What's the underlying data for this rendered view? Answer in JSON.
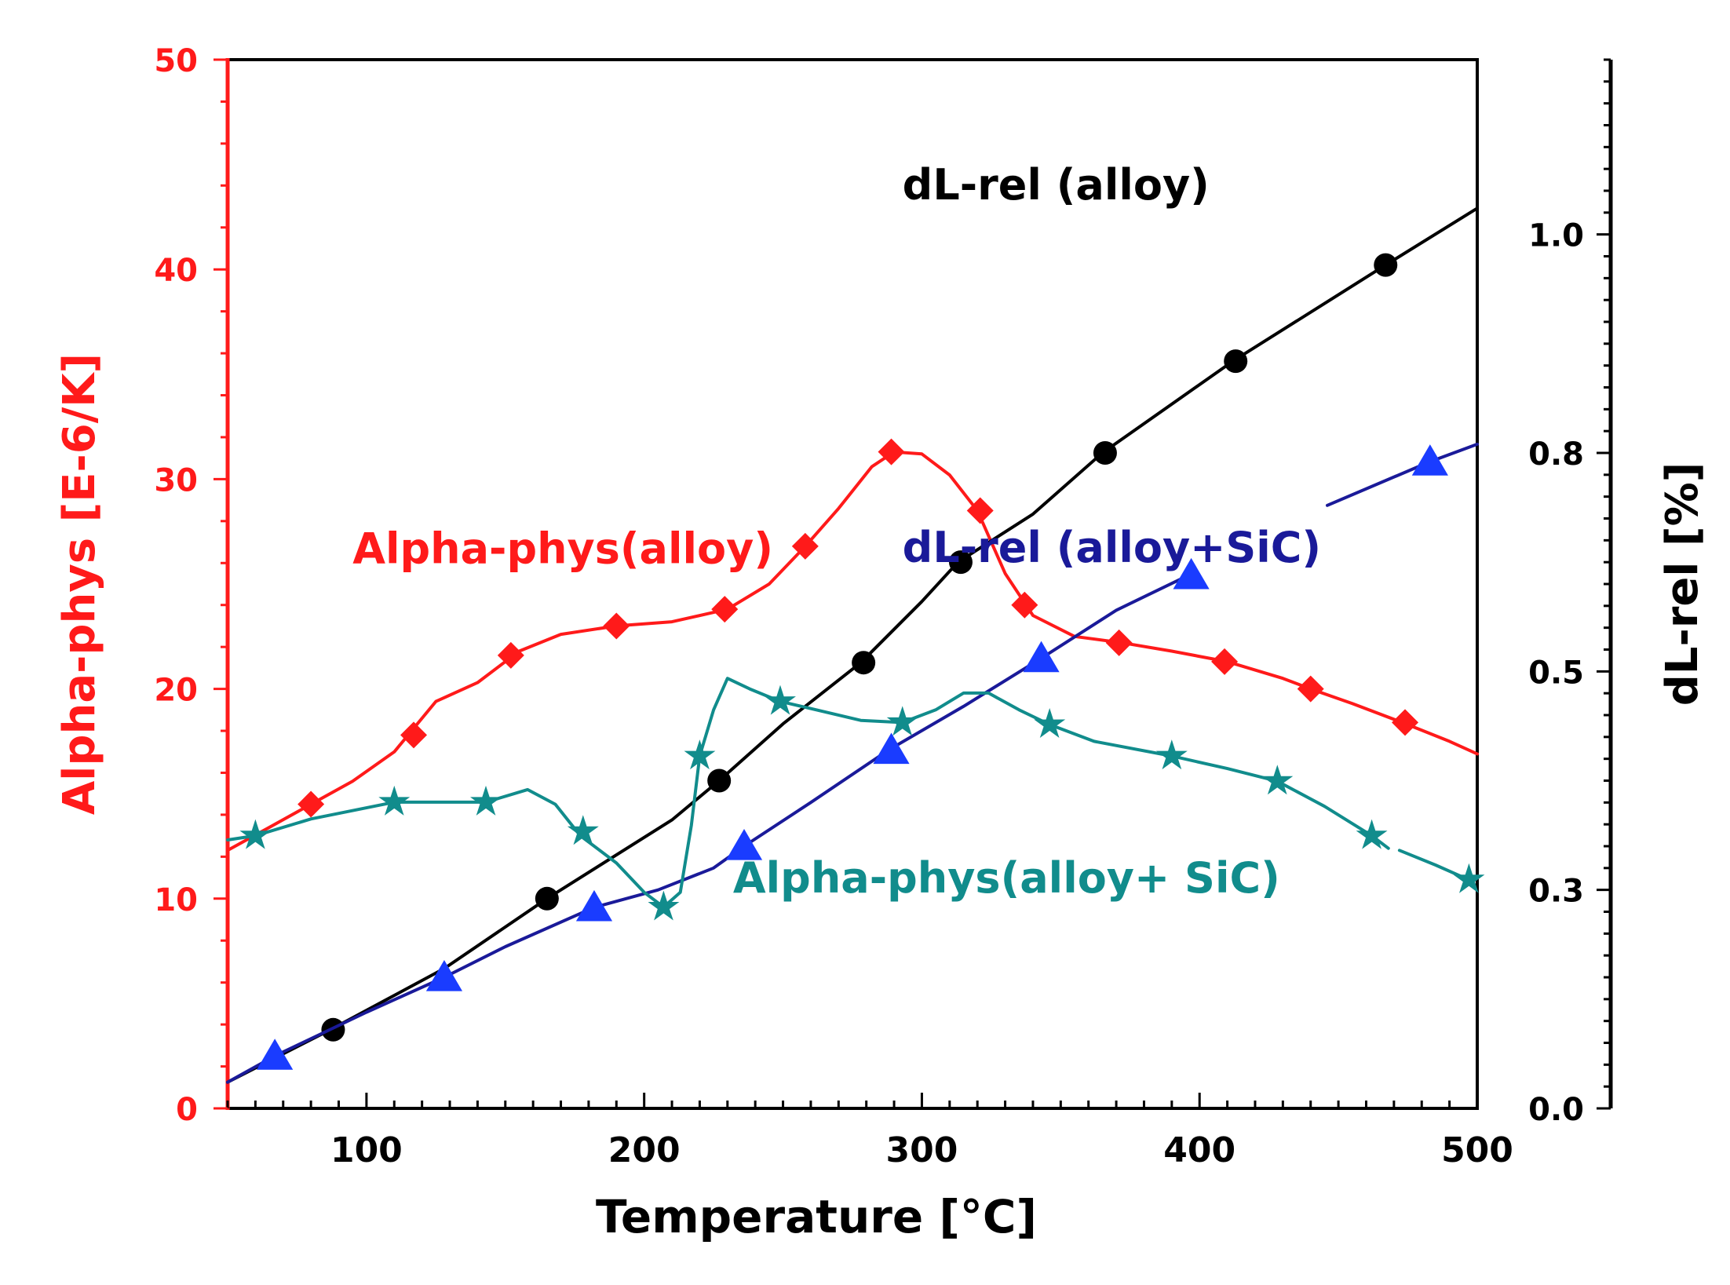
{
  "chart_data": {
    "type": "line",
    "xlabel": "Temperature [°C]",
    "ylabel_left": "Alpha-phys [E-6/K]",
    "ylabel_right": "dL-rel  [%]",
    "xlim": [
      50,
      500
    ],
    "ylim_left": [
      0,
      50
    ],
    "ylim_right": [
      0.0,
      1.2
    ],
    "x_ticks": [
      100,
      200,
      300,
      400,
      500
    ],
    "x_tick_labels": [
      "100",
      "200",
      "300",
      "400",
      "500"
    ],
    "y_left_ticks": [
      0,
      10,
      20,
      30,
      40,
      50
    ],
    "y_left_tick_labels": [
      "0",
      "10",
      "20",
      "30",
      "40",
      "50"
    ],
    "y_right_ticks": [
      0.0,
      0.25,
      0.5,
      0.75,
      1.0
    ],
    "y_right_tick_labels": [
      "0.0",
      "0.3",
      "0.5",
      "0.8",
      "1.0"
    ],
    "colors": {
      "left_axis": "#ff1a1a",
      "right_axis": "#000000",
      "alpha_alloy": "#ff1a1a",
      "dl_alloy": "#000000",
      "dl_sic_line": "#1a1a99",
      "dl_sic_marker": "#1a3cff",
      "alpha_sic": "#118c8c"
    },
    "series": [
      {
        "name": "Alpha-phys(alloy)",
        "axis": "left",
        "color_key": "alpha_alloy",
        "marker": "diamond",
        "label": "Alpha-phys(alloy)",
        "label_anchor": [
          95,
          26
        ],
        "line": [
          [
            50,
            12.3
          ],
          [
            65,
            13.4
          ],
          [
            80,
            14.5
          ],
          [
            95,
            15.6
          ],
          [
            110,
            17.0
          ],
          [
            125,
            19.4
          ],
          [
            140,
            20.3
          ],
          [
            155,
            21.8
          ],
          [
            170,
            22.6
          ],
          [
            190,
            23.0
          ],
          [
            210,
            23.2
          ],
          [
            230,
            23.8
          ],
          [
            245,
            25.0
          ],
          [
            258,
            26.8
          ],
          [
            270,
            28.6
          ],
          [
            282,
            30.6
          ],
          [
            290,
            31.3
          ],
          [
            300,
            31.2
          ],
          [
            310,
            30.2
          ],
          [
            320,
            28.5
          ],
          [
            330,
            25.5
          ],
          [
            340,
            23.5
          ],
          [
            355,
            22.5
          ],
          [
            372,
            22.2
          ],
          [
            390,
            21.8
          ],
          [
            410,
            21.3
          ],
          [
            430,
            20.5
          ],
          [
            440,
            20.0
          ],
          [
            455,
            19.3
          ],
          [
            473,
            18.4
          ],
          [
            490,
            17.5
          ],
          [
            500,
            16.9
          ]
        ],
        "markers": [
          [
            80,
            14.5
          ],
          [
            117,
            17.8
          ],
          [
            152,
            21.6
          ],
          [
            190,
            23.0
          ],
          [
            229,
            23.8
          ],
          [
            258,
            26.8
          ],
          [
            289,
            31.3
          ],
          [
            321,
            28.5
          ],
          [
            337,
            24.0
          ],
          [
            371,
            22.2
          ],
          [
            409,
            21.3
          ],
          [
            440,
            20.0
          ],
          [
            474,
            18.4
          ]
        ]
      },
      {
        "name": "dL-rel (alloy)",
        "axis": "right",
        "color_key": "dl_alloy",
        "marker": "circle",
        "label": "dL-rel (alloy)",
        "label_anchor": [
          293,
          1.04
        ],
        "line": [
          [
            50,
            0.03
          ],
          [
            87,
            0.09
          ],
          [
            128,
            0.16
          ],
          [
            165,
            0.24
          ],
          [
            210,
            0.33
          ],
          [
            227,
            0.375
          ],
          [
            250,
            0.44
          ],
          [
            278,
            0.51
          ],
          [
            300,
            0.58
          ],
          [
            313,
            0.625
          ],
          [
            340,
            0.68
          ],
          [
            365,
            0.75
          ],
          [
            412,
            0.855
          ],
          [
            467,
            0.965
          ],
          [
            500,
            1.03
          ]
        ],
        "markers": [
          [
            88,
            0.09
          ],
          [
            165,
            0.24
          ],
          [
            227,
            0.375
          ],
          [
            279,
            0.51
          ],
          [
            314,
            0.625
          ],
          [
            366,
            0.75
          ],
          [
            413,
            0.855
          ],
          [
            467,
            0.965
          ]
        ]
      },
      {
        "name": "dL-rel (alloy+SiC)",
        "axis": "right",
        "color_key": "dl_sic_line",
        "marker_color_key": "dl_sic_marker",
        "marker": "triangle",
        "label": "dL-rel (alloy+SiC)",
        "label_anchor": [
          293,
          0.625
        ],
        "line": [
          [
            50,
            0.03
          ],
          [
            67,
            0.06
          ],
          [
            100,
            0.11
          ],
          [
            128,
            0.15
          ],
          [
            150,
            0.185
          ],
          [
            182,
            0.23
          ],
          [
            205,
            0.25
          ],
          [
            225,
            0.275
          ],
          [
            236,
            0.3
          ],
          [
            260,
            0.35
          ],
          [
            288,
            0.41
          ],
          [
            315,
            0.46
          ],
          [
            343,
            0.515
          ],
          [
            370,
            0.57
          ],
          [
            396,
            0.61
          ]
        ],
        "line_tail": [
          [
            446,
            0.69
          ],
          [
            483,
            0.74
          ],
          [
            500,
            0.76
          ]
        ],
        "markers": [
          [
            67,
            0.06
          ],
          [
            128,
            0.15
          ],
          [
            182,
            0.23
          ],
          [
            236,
            0.3
          ],
          [
            289,
            0.41
          ],
          [
            343,
            0.515
          ],
          [
            397,
            0.61
          ],
          [
            483,
            0.74
          ]
        ]
      },
      {
        "name": "Alpha-phys(alloy+ SiC)",
        "axis": "left",
        "color_key": "alpha_sic",
        "marker": "star",
        "label": "Alpha-phys(alloy+ SiC)",
        "label_anchor": [
          232,
          10.3
        ],
        "line": [
          [
            50,
            12.8
          ],
          [
            60,
            13.0
          ],
          [
            80,
            13.8
          ],
          [
            110,
            14.6
          ],
          [
            130,
            14.6
          ],
          [
            143,
            14.6
          ],
          [
            158,
            15.2
          ],
          [
            168,
            14.5
          ],
          [
            177,
            13.0
          ],
          [
            190,
            11.7
          ],
          [
            200,
            10.3
          ],
          [
            207,
            9.6
          ],
          [
            213,
            10.3
          ],
          [
            217,
            13.5
          ],
          [
            220,
            16.8
          ],
          [
            225,
            19.0
          ],
          [
            230,
            20.5
          ],
          [
            238,
            20.0
          ],
          [
            249,
            19.4
          ],
          [
            262,
            19.0
          ],
          [
            278,
            18.5
          ],
          [
            293,
            18.4
          ],
          [
            305,
            19.0
          ],
          [
            315,
            19.8
          ],
          [
            324,
            19.8
          ],
          [
            335,
            19.0
          ],
          [
            346,
            18.3
          ],
          [
            362,
            17.5
          ],
          [
            390,
            16.8
          ],
          [
            410,
            16.2
          ],
          [
            428,
            15.6
          ],
          [
            445,
            14.4
          ],
          [
            462,
            13.0
          ],
          [
            468,
            12.4
          ]
        ],
        "line_tail": [
          [
            472,
            12.3
          ],
          [
            485,
            11.6
          ],
          [
            497,
            10.9
          ]
        ],
        "markers": [
          [
            60,
            13.0
          ],
          [
            110,
            14.6
          ],
          [
            143,
            14.6
          ],
          [
            178,
            13.2
          ],
          [
            207,
            9.6
          ],
          [
            220,
            16.8
          ],
          [
            249,
            19.4
          ],
          [
            293,
            18.4
          ],
          [
            346,
            18.3
          ],
          [
            390,
            16.8
          ],
          [
            428,
            15.6
          ],
          [
            462,
            13.0
          ],
          [
            497,
            10.9
          ]
        ]
      }
    ]
  }
}
